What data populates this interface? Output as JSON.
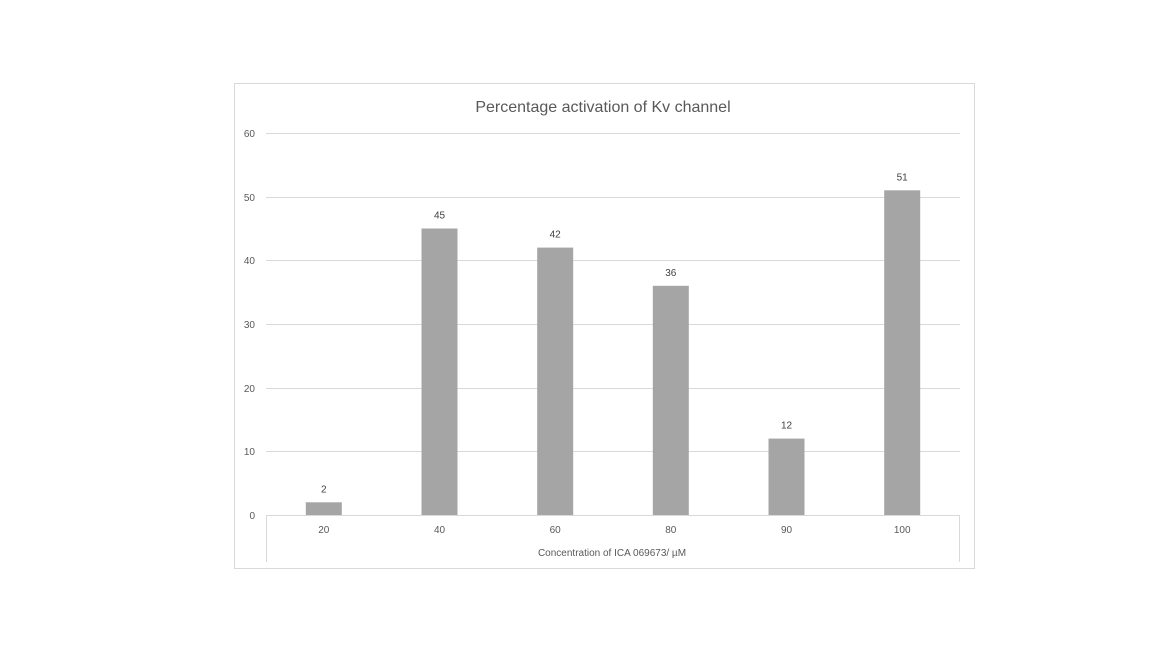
{
  "chart_data": {
    "type": "bar",
    "title": "Percentage activation of Kv channel",
    "xlabel": "Concentration of ICA 069673/ µM",
    "ylabel": "",
    "categories": [
      "20",
      "40",
      "60",
      "80",
      "90",
      "100"
    ],
    "values": [
      2,
      45,
      42,
      36,
      12,
      51
    ],
    "data_labels": [
      "2",
      "45",
      "42",
      "36",
      "12",
      "51"
    ],
    "ylim": [
      0,
      60
    ],
    "yticks": [
      0,
      10,
      20,
      30,
      40,
      50,
      60
    ],
    "grid": true,
    "legend": "none",
    "bar_color": "#a5a5a5"
  }
}
